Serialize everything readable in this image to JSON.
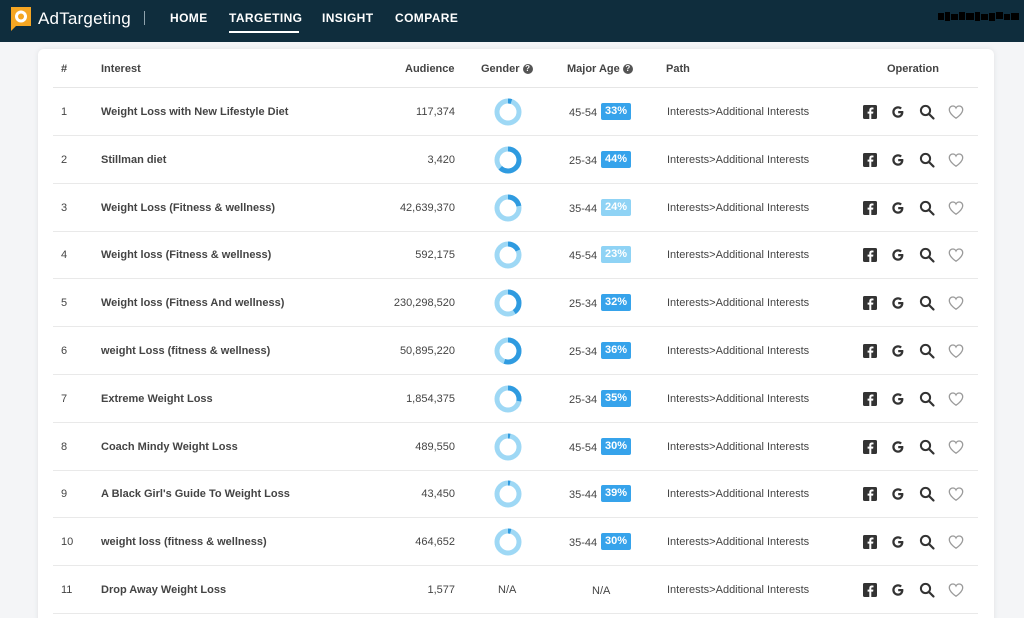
{
  "header": {
    "brand": "AdTargeting",
    "nav": [
      "HOME",
      "TARGETING",
      "INSIGHT",
      "COMPARE"
    ],
    "active_nav": "TARGETING"
  },
  "table": {
    "columns": {
      "num": "#",
      "interest": "Interest",
      "audience": "Audience",
      "gender": "Gender",
      "major_age": "Major Age",
      "path": "Path",
      "operation": "Operation"
    },
    "rows": [
      {
        "num": "1",
        "interest": "Weight Loss with New Lifestyle Diet",
        "audience": "117,374",
        "gender_fraction": 0.05,
        "age": "45-54",
        "pct": "33%",
        "path": "Interests>Additional Interests"
      },
      {
        "num": "2",
        "interest": "Stillman diet",
        "audience": "3,420",
        "gender_fraction": 0.62,
        "age": "25-34",
        "pct": "44%",
        "path": "Interests>Additional Interests"
      },
      {
        "num": "3",
        "interest": "Weight Loss (Fitness & wellness)",
        "audience": "42,639,370",
        "gender_fraction": 0.22,
        "age": "35-44",
        "pct": "24%",
        "path": "Interests>Additional Interests"
      },
      {
        "num": "4",
        "interest": "Weight loss (Fitness & wellness)",
        "audience": "592,175",
        "gender_fraction": 0.18,
        "age": "45-54",
        "pct": "23%",
        "path": "Interests>Additional Interests"
      },
      {
        "num": "5",
        "interest": "Weight loss (Fitness And wellness)",
        "audience": "230,298,520",
        "gender_fraction": 0.4,
        "age": "25-34",
        "pct": "32%",
        "path": "Interests>Additional Interests"
      },
      {
        "num": "6",
        "interest": "weight Loss (fitness & wellness)",
        "audience": "50,895,220",
        "gender_fraction": 0.55,
        "age": "25-34",
        "pct": "36%",
        "path": "Interests>Additional Interests"
      },
      {
        "num": "7",
        "interest": "Extreme Weight Loss",
        "audience": "1,854,375",
        "gender_fraction": 0.28,
        "age": "25-34",
        "pct": "35%",
        "path": "Interests>Additional Interests"
      },
      {
        "num": "8",
        "interest": "Coach Mindy Weight Loss",
        "audience": "489,550",
        "gender_fraction": 0.03,
        "age": "45-54",
        "pct": "30%",
        "path": "Interests>Additional Interests"
      },
      {
        "num": "9",
        "interest": "A Black Girl's Guide To Weight Loss",
        "audience": "43,450",
        "gender_fraction": 0.03,
        "age": "35-44",
        "pct": "39%",
        "path": "Interests>Additional Interests"
      },
      {
        "num": "10",
        "interest": "weight loss (fitness & wellness)",
        "audience": "464,652",
        "gender_fraction": 0.04,
        "age": "35-44",
        "pct": "30%",
        "path": "Interests>Additional Interests"
      },
      {
        "num": "11",
        "interest": "Drop Away Weight Loss",
        "audience": "1,577",
        "gender": "N/A",
        "age": "N/A",
        "path": "Interests>Additional Interests"
      }
    ]
  },
  "colors": {
    "topbar": "#0f2d3d",
    "accent_orange": "#f5a623",
    "donut_light": "#9ed8f5",
    "donut_dark": "#2f9be0",
    "badge_dark": "#36a3eb",
    "badge_light": "#8fd3f5"
  },
  "icons": [
    "facebook-icon",
    "google-icon",
    "search-icon",
    "heart-icon"
  ]
}
